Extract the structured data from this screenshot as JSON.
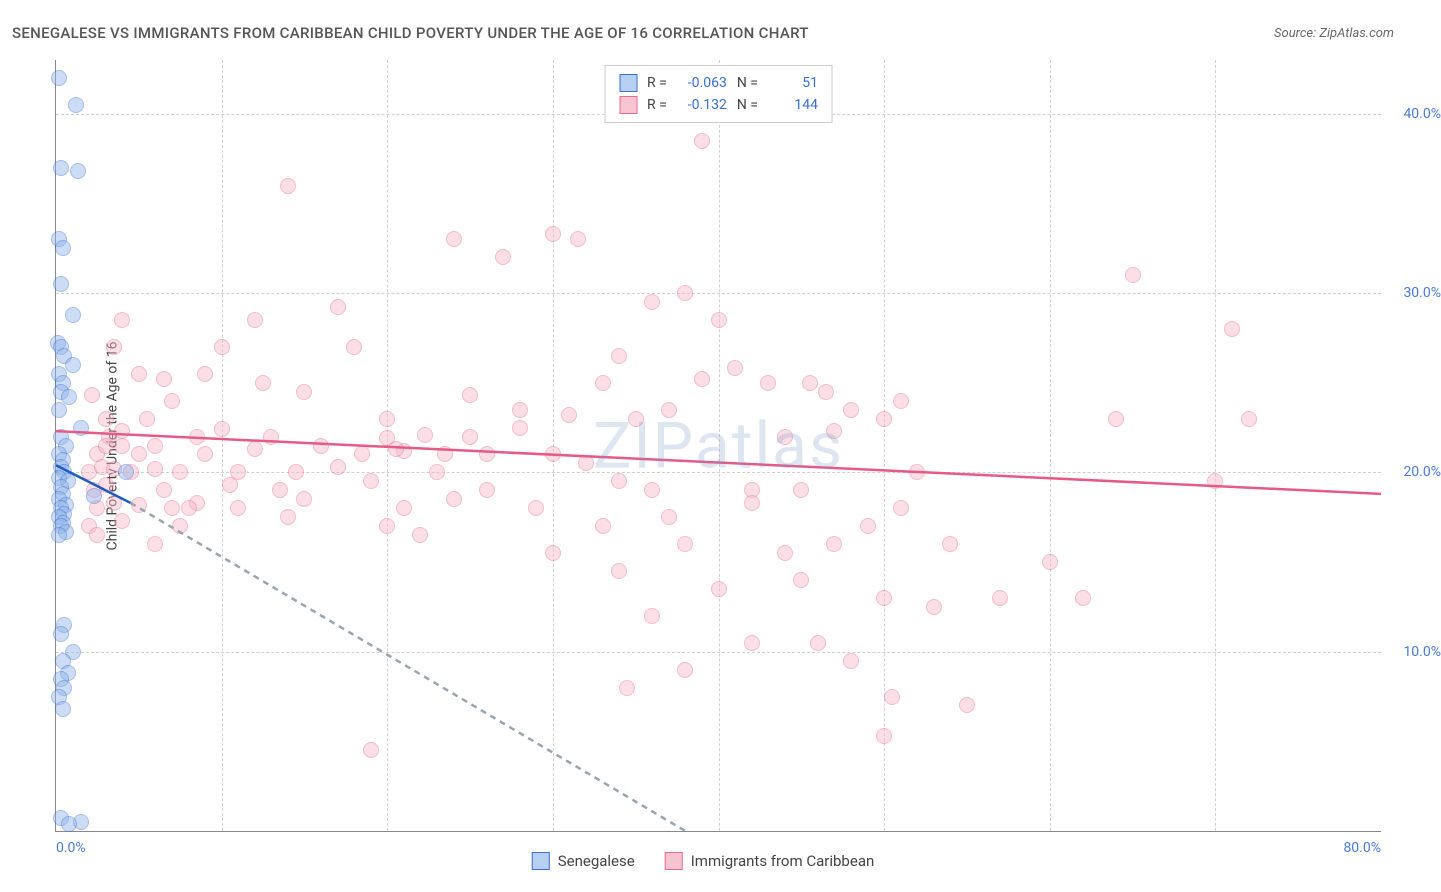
{
  "header": {
    "title": "SENEGALESE VS IMMIGRANTS FROM CARIBBEAN CHILD POVERTY UNDER THE AGE OF 16 CORRELATION CHART",
    "source": "Source: ZipAtlas.com"
  },
  "axes": {
    "y_label": "Child Poverty Under the Age of 16",
    "x_min": 0,
    "x_max": 80,
    "y_min": 0,
    "y_max": 43,
    "y_ticks": [
      10,
      20,
      30,
      40
    ],
    "y_tick_labels": [
      "10.0%",
      "20.0%",
      "30.0%",
      "40.0%"
    ],
    "x_ticks_minor": [
      10,
      20,
      30,
      40,
      50,
      60,
      70
    ],
    "x_tick_min_label": "0.0%",
    "x_tick_max_label": "80.0%"
  },
  "style": {
    "grid_color": "#d0d0d0",
    "axis_color": "#888888",
    "tick_label_color": "#4a7bd4",
    "background_color": "#ffffff",
    "marker_radius": 8,
    "marker_opacity": 0.45,
    "blue_fill": "#8fb3e8",
    "blue_stroke": "#3a6fd8",
    "pink_fill": "#f7b8c8",
    "pink_stroke": "#e96a92",
    "trend_blue": "#1d5bbf",
    "trend_pink": "#e65a88",
    "trend_dash": "#9aa5b0",
    "trend_width": 2.5
  },
  "legend_top": {
    "rows": [
      {
        "swatch_fill": "#b7cff0",
        "swatch_stroke": "#3a6fd8",
        "r_label": "R =",
        "r_val": "-0.063",
        "n_label": "N =",
        "n_val": "51"
      },
      {
        "swatch_fill": "#f7c4d2",
        "swatch_stroke": "#e96a92",
        "r_label": "R =",
        "r_val": "-0.132",
        "n_label": "N =",
        "n_val": "144"
      }
    ]
  },
  "legend_bottom": {
    "items": [
      {
        "swatch_fill": "#b7cff0",
        "swatch_stroke": "#3a6fd8",
        "label": "Senegalese"
      },
      {
        "swatch_fill": "#f7c4d2",
        "swatch_stroke": "#e96a92",
        "label": "Immigrants from Caribbean"
      }
    ]
  },
  "watermark": "ZIPatlas",
  "series_blue": {
    "points": [
      [
        0.2,
        42
      ],
      [
        1.2,
        40.5
      ],
      [
        0.3,
        37
      ],
      [
        1.3,
        36.8
      ],
      [
        0.2,
        33
      ],
      [
        0.4,
        32.5
      ],
      [
        0.3,
        30.5
      ],
      [
        1.0,
        28.8
      ],
      [
        0.1,
        27.2
      ],
      [
        0.3,
        27
      ],
      [
        0.5,
        26.5
      ],
      [
        1.0,
        26
      ],
      [
        0.2,
        25.5
      ],
      [
        0.4,
        25
      ],
      [
        0.3,
        24.5
      ],
      [
        0.8,
        24.2
      ],
      [
        0.2,
        23.5
      ],
      [
        1.5,
        22.5
      ],
      [
        0.3,
        22
      ],
      [
        0.6,
        21.5
      ],
      [
        0.2,
        21
      ],
      [
        0.4,
        20.7
      ],
      [
        0.3,
        20.3
      ],
      [
        4.2,
        20.0
      ],
      [
        0.5,
        20
      ],
      [
        0.2,
        19.7
      ],
      [
        0.7,
        19.5
      ],
      [
        0.3,
        19.2
      ],
      [
        2.3,
        18.7
      ],
      [
        0.4,
        18.8
      ],
      [
        0.2,
        18.5
      ],
      [
        0.6,
        18.2
      ],
      [
        0.3,
        18
      ],
      [
        0.5,
        17.7
      ],
      [
        0.2,
        17.5
      ],
      [
        0.4,
        17.2
      ],
      [
        0.3,
        17
      ],
      [
        0.6,
        16.7
      ],
      [
        0.2,
        16.5
      ],
      [
        0.5,
        11.5
      ],
      [
        0.3,
        11
      ],
      [
        1.0,
        10
      ],
      [
        0.4,
        9.5
      ],
      [
        0.7,
        8.8
      ],
      [
        0.3,
        8.5
      ],
      [
        0.5,
        8
      ],
      [
        0.2,
        7.5
      ],
      [
        0.4,
        6.8
      ],
      [
        0.3,
        0.7
      ],
      [
        1.5,
        0.5
      ],
      [
        0.8,
        0.4
      ]
    ],
    "trend": {
      "x1": 0,
      "y1": 20.4,
      "x2": 4.5,
      "y2": 18.3
    },
    "trend_dash": {
      "x1": 4.5,
      "y1": 18.3,
      "x2": 38,
      "y2": 0
    }
  },
  "series_pink": {
    "points": [
      [
        39,
        38.5
      ],
      [
        14,
        36
      ],
      [
        65,
        31
      ],
      [
        24,
        33
      ],
      [
        30,
        33.3
      ],
      [
        31.5,
        33
      ],
      [
        27,
        32
      ],
      [
        4.0,
        28.5
      ],
      [
        12,
        28.5
      ],
      [
        17,
        29.2
      ],
      [
        36,
        29.5
      ],
      [
        38,
        30
      ],
      [
        40,
        28.5
      ],
      [
        71,
        28
      ],
      [
        3.5,
        27
      ],
      [
        10,
        27
      ],
      [
        18,
        27
      ],
      [
        5,
        25.5
      ],
      [
        6.5,
        25.2
      ],
      [
        9,
        25.5
      ],
      [
        12.5,
        25
      ],
      [
        33,
        25
      ],
      [
        34,
        26.5
      ],
      [
        39,
        25.2
      ],
      [
        41,
        25.8
      ],
      [
        43,
        25
      ],
      [
        45.5,
        25
      ],
      [
        46.5,
        24.5
      ],
      [
        2.2,
        24.3
      ],
      [
        7,
        24
      ],
      [
        15,
        24.5
      ],
      [
        25,
        24.3
      ],
      [
        51,
        24
      ],
      [
        3,
        23
      ],
      [
        5.5,
        23
      ],
      [
        20,
        23
      ],
      [
        28,
        23.5
      ],
      [
        31,
        23.2
      ],
      [
        35,
        23
      ],
      [
        37,
        23.5
      ],
      [
        48,
        23.5
      ],
      [
        50,
        23
      ],
      [
        64,
        23
      ],
      [
        72,
        23
      ],
      [
        3.2,
        22
      ],
      [
        4,
        22.3
      ],
      [
        8.5,
        22
      ],
      [
        10,
        22.4
      ],
      [
        13,
        22
      ],
      [
        20,
        21.9
      ],
      [
        22.3,
        22.1
      ],
      [
        25,
        22
      ],
      [
        28,
        22.5
      ],
      [
        44,
        22
      ],
      [
        47,
        22.3
      ],
      [
        2.5,
        21
      ],
      [
        3.0,
        21.5
      ],
      [
        4,
        21.5
      ],
      [
        5,
        21
      ],
      [
        6,
        21.5
      ],
      [
        9,
        21
      ],
      [
        12,
        21.3
      ],
      [
        16,
        21.5
      ],
      [
        18.5,
        21
      ],
      [
        21,
        21.2
      ],
      [
        23.5,
        21
      ],
      [
        26,
        21
      ],
      [
        30,
        21
      ],
      [
        2,
        20
      ],
      [
        2.8,
        20.3
      ],
      [
        3.5,
        20.2
      ],
      [
        4.5,
        20
      ],
      [
        6,
        20.2
      ],
      [
        7.5,
        20
      ],
      [
        11,
        20
      ],
      [
        14.5,
        20
      ],
      [
        17,
        20.3
      ],
      [
        23,
        20
      ],
      [
        32,
        20.5
      ],
      [
        36,
        19
      ],
      [
        52,
        20
      ],
      [
        2.3,
        19
      ],
      [
        3,
        19.3
      ],
      [
        6.5,
        19
      ],
      [
        10.5,
        19.3
      ],
      [
        13.5,
        19
      ],
      [
        19,
        19.5
      ],
      [
        26,
        19
      ],
      [
        34,
        19.5
      ],
      [
        42,
        19
      ],
      [
        45,
        19
      ],
      [
        70,
        19.5
      ],
      [
        2.5,
        18
      ],
      [
        3.5,
        18.3
      ],
      [
        5,
        18.2
      ],
      [
        7,
        18
      ],
      [
        8.5,
        18.3
      ],
      [
        11,
        18
      ],
      [
        15,
        18.5
      ],
      [
        21,
        18
      ],
      [
        24,
        18.5
      ],
      [
        29,
        18
      ],
      [
        42,
        18.3
      ],
      [
        51,
        18
      ],
      [
        2,
        17
      ],
      [
        4,
        17.3
      ],
      [
        7.5,
        17
      ],
      [
        14,
        17.5
      ],
      [
        20,
        17
      ],
      [
        33,
        17
      ],
      [
        37,
        17.5
      ],
      [
        49,
        17
      ],
      [
        2.5,
        16.5
      ],
      [
        6,
        16
      ],
      [
        22,
        16.5
      ],
      [
        30,
        15.5
      ],
      [
        38,
        16
      ],
      [
        44,
        15.5
      ],
      [
        47,
        16
      ],
      [
        54,
        16
      ],
      [
        60,
        15
      ],
      [
        57,
        13
      ],
      [
        62,
        13
      ],
      [
        34,
        14.5
      ],
      [
        40,
        13.5
      ],
      [
        45,
        14
      ],
      [
        50,
        13
      ],
      [
        53,
        12.5
      ],
      [
        36,
        12
      ],
      [
        42,
        10.5
      ],
      [
        48,
        9.5
      ],
      [
        46,
        10.5
      ],
      [
        8,
        18.0
      ],
      [
        34.5,
        8
      ],
      [
        38,
        9
      ],
      [
        50.5,
        7.5
      ],
      [
        55,
        7
      ],
      [
        19,
        4.5
      ],
      [
        50,
        5.3
      ],
      [
        20.5,
        21.3
      ]
    ],
    "trend": {
      "x1": 0,
      "y1": 22.3,
      "x2": 80,
      "y2": 18.8
    }
  }
}
